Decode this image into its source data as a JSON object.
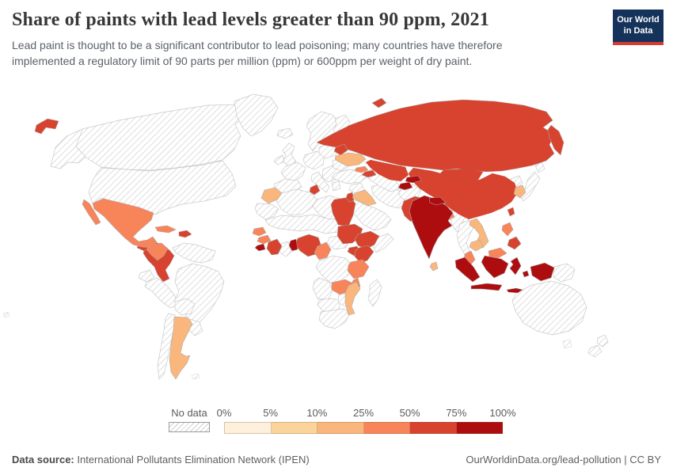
{
  "header": {
    "title": "Share of paints with lead levels greater than 90 ppm, 2021",
    "subtitle": "Lead paint is thought to be a significant contributor to lead poisoning; many countries have therefore implemented a regulatory limit of 90 parts per million (ppm) or 600ppm per weight of dry paint.",
    "logo": {
      "line1": "Our World",
      "line2": "in Data"
    }
  },
  "theme": {
    "logo_bg": "#15335a",
    "logo_accent": "#d43b33",
    "title_color": "#373737",
    "text_gray": "#5b6169",
    "hatch_line": "#d4d4d4",
    "border_gray": "#c9c9c9"
  },
  "legend": {
    "no_data_label": "No data",
    "tick_labels": [
      "0%",
      "5%",
      "10%",
      "25%",
      "50%",
      "75%",
      "100%"
    ],
    "bin_colors": [
      "#fdf0dc",
      "#fbd49c",
      "#fab77d",
      "#f8845a",
      "#d7432e",
      "#ae0d10"
    ]
  },
  "footer": {
    "source_label": "Data source:",
    "source_text": " International Pollutants Elimination Network (IPEN)",
    "link_text": "OurWorldinData.org/lead-pollution | CC BY"
  },
  "chart_data": {
    "type": "heatmap",
    "subtype": "choropleth-world-map",
    "title": "Share of paints with lead levels greater than 90 ppm",
    "year": "2021",
    "unit": "% of analysed paints exceeding 90 ppm lead",
    "legend_position": "bottom",
    "bins": [
      {
        "range": "0-5%",
        "color": "#fdf0dc"
      },
      {
        "range": "5-10%",
        "color": "#fbd49c"
      },
      {
        "range": "10-25%",
        "color": "#fab77d"
      },
      {
        "range": "25-50%",
        "color": "#f8845a"
      },
      {
        "range": "50-75%",
        "color": "#d7432e"
      },
      {
        "range": "75-100%",
        "color": "#ae0d10"
      }
    ],
    "countries_by_bin": {
      "75-100%": [
        "India",
        "Nepal",
        "Tajikistan",
        "Kyrgyzstan",
        "Indonesia",
        "Benin",
        "Sierra Leone"
      ],
      "50-75%": [
        "Russia",
        "Kazakhstan",
        "Mongolia",
        "China",
        "Pakistan",
        "Taiwan",
        "Colombia",
        "Guatemala",
        "Dominican Republic",
        "Tunisia",
        "Egypt",
        "Sudan",
        "Ethiopia",
        "Uganda",
        "Kenya",
        "Nigeria",
        "Cote d'Ivoire",
        "Azerbaijan",
        "Belarus",
        "Israel",
        "Philippines (south)"
      ],
      "25-50%": [
        "Mexico",
        "Honduras",
        "Nicaragua",
        "Cuba",
        "Senegal",
        "Guinea",
        "Cameroon",
        "Tanzania",
        "Zambia",
        "Malawi",
        "Bangladesh",
        "Georgia",
        "Philippines (Luzon)",
        "Malaysia"
      ],
      "10-25%": [
        "Ukraine",
        "Morocco",
        "Iraq",
        "Mozambique",
        "Argentina",
        "South Korea",
        "Sri Lanka",
        "Vietnam",
        "Cambodia"
      ],
      "5-10%": [],
      "0-5%": []
    },
    "no_data_regions": [
      "United States",
      "Canada",
      "Alaska",
      "Greenland",
      "Iceland",
      "Venezuela",
      "Brazil",
      "Peru",
      "Bolivia",
      "Chile",
      "Western Europe",
      "Scandinavia",
      "Turkey",
      "Syria",
      "Saudi Arabia",
      "Iran",
      "Afghanistan",
      "Algeria",
      "Libya",
      "Sahel",
      "Ghana",
      "DR Congo",
      "Angola",
      "Zimbabwe",
      "South Africa",
      "Madagascar",
      "Somalia",
      "Myanmar",
      "Thailand",
      "Japan",
      "North Korea",
      "Papua New Guinea",
      "Australia",
      "New Zealand"
    ]
  }
}
